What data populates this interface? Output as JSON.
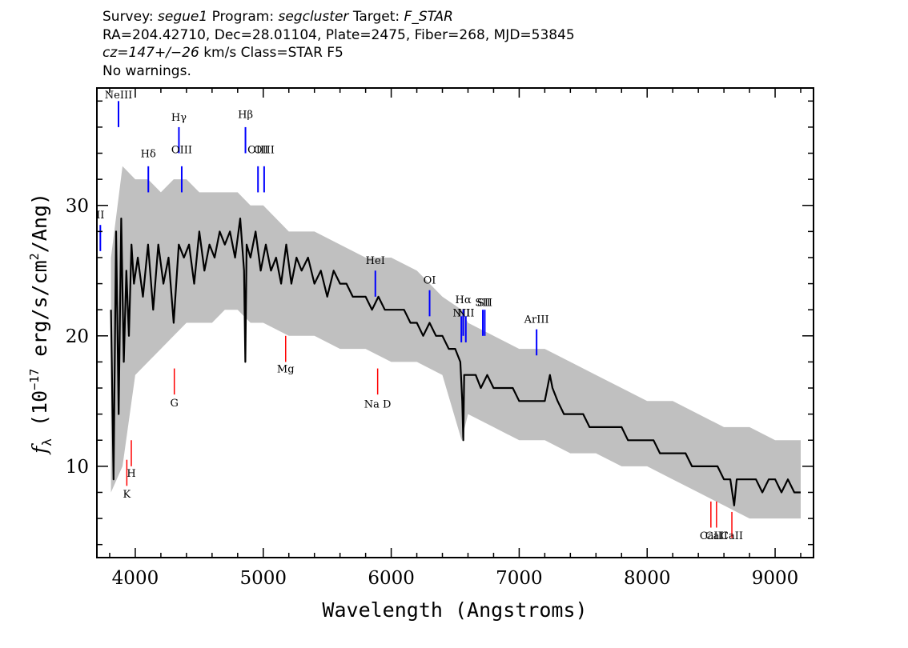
{
  "header": {
    "survey_label": "Survey:",
    "survey": "segue1",
    "program_label": "Program:",
    "program": "segcluster",
    "target_label": "Target:",
    "target": "F_STAR",
    "line2": "RA=204.42710, Dec=28.01104, Plate=2475, Fiber=268, MJD=53845",
    "redshift": "cz=147+/−26",
    "line3_rest": " km/s Class=STAR F5",
    "line4": "No warnings."
  },
  "chart_data": {
    "type": "line",
    "xlabel": "Wavelength (Angstroms)",
    "ylabel_prefix": "f",
    "ylabel_sub": "λ",
    "ylabel_mid": " (10",
    "ylabel_exp": "−17",
    "ylabel_unit": " erg/s/cm",
    "ylabel_exp2": "2",
    "ylabel_tail": "/Ang)",
    "xlim": [
      3700,
      9300
    ],
    "ylim": [
      3,
      39
    ],
    "x_ticks": [
      4000,
      5000,
      6000,
      7000,
      8000,
      9000
    ],
    "x_tick_labels": [
      "4000",
      "5000",
      "6000",
      "7000",
      "8000",
      "9000"
    ],
    "y_ticks": [
      10,
      20,
      30
    ],
    "y_tick_labels": [
      "10",
      "20",
      "30"
    ],
    "colors": {
      "spectrum": "#000000",
      "noise_band": "#c0c0c0",
      "emission": "#0000ff",
      "absorption": "#ff0000"
    },
    "series": [
      {
        "role": "smoothed flux",
        "x": [
          3810,
          3830,
          3850,
          3870,
          3890,
          3910,
          3930,
          3950,
          3970,
          3990,
          4020,
          4060,
          4100,
          4140,
          4180,
          4220,
          4260,
          4300,
          4340,
          4380,
          4420,
          4460,
          4500,
          4540,
          4580,
          4620,
          4660,
          4700,
          4740,
          4780,
          4820,
          4850,
          4860,
          4870,
          4900,
          4940,
          4980,
          5020,
          5060,
          5100,
          5140,
          5180,
          5220,
          5260,
          5300,
          5350,
          5400,
          5450,
          5500,
          5550,
          5600,
          5650,
          5700,
          5750,
          5800,
          5850,
          5900,
          5950,
          6000,
          6050,
          6100,
          6150,
          6200,
          6250,
          6300,
          6350,
          6400,
          6450,
          6500,
          6540,
          6555,
          6563,
          6570,
          6590,
          6620,
          6660,
          6700,
          6750,
          6800,
          6850,
          6900,
          6950,
          7000,
          7050,
          7100,
          7150,
          7200,
          7240,
          7260,
          7300,
          7350,
          7400,
          7450,
          7500,
          7550,
          7600,
          7650,
          7700,
          7750,
          7800,
          7850,
          7900,
          7950,
          8000,
          8050,
          8100,
          8150,
          8200,
          8250,
          8300,
          8350,
          8400,
          8450,
          8500,
          8550,
          8600,
          8650,
          8680,
          8700,
          8750,
          8800,
          8850,
          8900,
          8950,
          9000,
          9050,
          9100,
          9150,
          9200
        ],
        "y": [
          22,
          9,
          28,
          14,
          29,
          18,
          25,
          20,
          27,
          24,
          26,
          23,
          27,
          22,
          27,
          24,
          26,
          21,
          27,
          26,
          27,
          24,
          28,
          25,
          27,
          26,
          28,
          27,
          28,
          26,
          29,
          25,
          18,
          27,
          26,
          28,
          25,
          27,
          25,
          26,
          24,
          27,
          24,
          26,
          25,
          26,
          24,
          25,
          23,
          25,
          24,
          24,
          23,
          23,
          23,
          22,
          23,
          22,
          22,
          22,
          22,
          21,
          21,
          20,
          21,
          20,
          20,
          19,
          19,
          18,
          15,
          12,
          17,
          17,
          17,
          17,
          16,
          17,
          16,
          16,
          16,
          16,
          15,
          15,
          15,
          15,
          15,
          17,
          16,
          15,
          14,
          14,
          14,
          14,
          13,
          13,
          13,
          13,
          13,
          13,
          12,
          12,
          12,
          12,
          12,
          11,
          11,
          11,
          11,
          11,
          10,
          10,
          10,
          10,
          10,
          9,
          9,
          7,
          9,
          9,
          9,
          9,
          8,
          9,
          9,
          8,
          9,
          8,
          8
        ]
      },
      {
        "role": "noise upper",
        "x": [
          3810,
          3900,
          4000,
          4100,
          4200,
          4300,
          4400,
          4500,
          4600,
          4700,
          4800,
          4900,
          5000,
          5200,
          5400,
          5600,
          5800,
          6000,
          6200,
          6400,
          6550,
          6600,
          6800,
          7000,
          7200,
          7400,
          7600,
          7800,
          8000,
          8200,
          8400,
          8600,
          8800,
          9000,
          9200
        ],
        "y": [
          26,
          33,
          32,
          32,
          31,
          32,
          32,
          31,
          31,
          31,
          31,
          30,
          30,
          28,
          28,
          27,
          26,
          26,
          25,
          23,
          22,
          21,
          20,
          19,
          19,
          18,
          17,
          16,
          15,
          15,
          14,
          13,
          13,
          12,
          12
        ]
      },
      {
        "role": "noise lower",
        "x": [
          3810,
          3900,
          4000,
          4100,
          4200,
          4300,
          4400,
          4500,
          4600,
          4700,
          4800,
          4900,
          5000,
          5200,
          5400,
          5600,
          5800,
          6000,
          6200,
          6400,
          6550,
          6600,
          6800,
          7000,
          7200,
          7400,
          7600,
          7800,
          8000,
          8200,
          8400,
          8600,
          8800,
          9000,
          9200
        ],
        "y": [
          8,
          10,
          17,
          18,
          19,
          20,
          21,
          21,
          21,
          22,
          22,
          21,
          21,
          20,
          20,
          19,
          19,
          18,
          18,
          17,
          12,
          14,
          13,
          12,
          12,
          11,
          11,
          10,
          10,
          9,
          8,
          7,
          6,
          6,
          6
        ]
      }
    ],
    "emission_lines": [
      {
        "label": "NeIII",
        "x": 3869,
        "y": [
          36,
          38
        ],
        "label_y": 38.2
      },
      {
        "label": "Hδ",
        "x": 4102,
        "y": [
          31,
          33
        ],
        "label_y": 33.7
      },
      {
        "label": "Hγ",
        "x": 4341,
        "y": [
          34,
          36
        ],
        "label_y": 36.5
      },
      {
        "label": "OIII",
        "x": 4363,
        "y": [
          31,
          33
        ],
        "label_y": 34
      },
      {
        "label": "Hβ",
        "x": 4861,
        "y": [
          34,
          36
        ],
        "label_y": 36.7
      },
      {
        "label": "OIII",
        "x": 4959,
        "y": [
          31,
          33
        ],
        "label_y": 34
      },
      {
        "label": "OIII",
        "x": 5007,
        "y": [
          31,
          33
        ],
        "label_y": 34
      },
      {
        "label": "HeI",
        "x": 5876,
        "y": [
          23,
          25
        ],
        "label_y": 25.5
      },
      {
        "label": "OI",
        "x": 6300,
        "y": [
          21.5,
          23.5
        ],
        "label_y": 24
      },
      {
        "label": "NII",
        "x": 6548,
        "y": [
          19.5,
          21.5
        ],
        "label_y": 21.5
      },
      {
        "label": "Hα",
        "x": 6563,
        "y": [
          20,
          22
        ],
        "label_y": 22.5
      },
      {
        "label": "NII",
        "x": 6583,
        "y": [
          19.5,
          21.5
        ],
        "label_y": 21.5
      },
      {
        "label": "SII",
        "x": 6716,
        "y": [
          20,
          22
        ],
        "label_y": 22.3
      },
      {
        "label": "SII",
        "x": 6731,
        "y": [
          20,
          22
        ],
        "label_y": 22.3
      },
      {
        "label": "ArIII",
        "x": 7136,
        "y": [
          18.5,
          20.5
        ],
        "label_y": 21
      },
      {
        "label": "II",
        "x": 3727,
        "y": [
          26.5,
          28.5
        ],
        "label_y": 29
      }
    ],
    "absorption_lines": [
      {
        "label": "K",
        "x": 3934,
        "y": [
          8.5,
          10.5
        ],
        "label_y": 7.6
      },
      {
        "label": "H",
        "x": 3969,
        "y": [
          10,
          12
        ],
        "label_y": 9.2
      },
      {
        "label": "G",
        "x": 4305,
        "y": [
          15.5,
          17.5
        ],
        "label_y": 14.6
      },
      {
        "label": "Mg",
        "x": 5175,
        "y": [
          18,
          20
        ],
        "label_y": 17.2
      },
      {
        "label": "Na  D",
        "x": 5894,
        "y": [
          15.5,
          17.5
        ],
        "label_y": 14.5
      },
      {
        "label": "CaII",
        "x": 8498,
        "y": [
          5.3,
          7.3
        ],
        "label_y": 4.4
      },
      {
        "label": "CaII",
        "x": 8542,
        "y": [
          5.3,
          7.3
        ],
        "label_y": 4.4
      },
      {
        "label": "CaII",
        "x": 8662,
        "y": [
          4.5,
          6.5
        ],
        "label_y": 4.4
      }
    ]
  }
}
